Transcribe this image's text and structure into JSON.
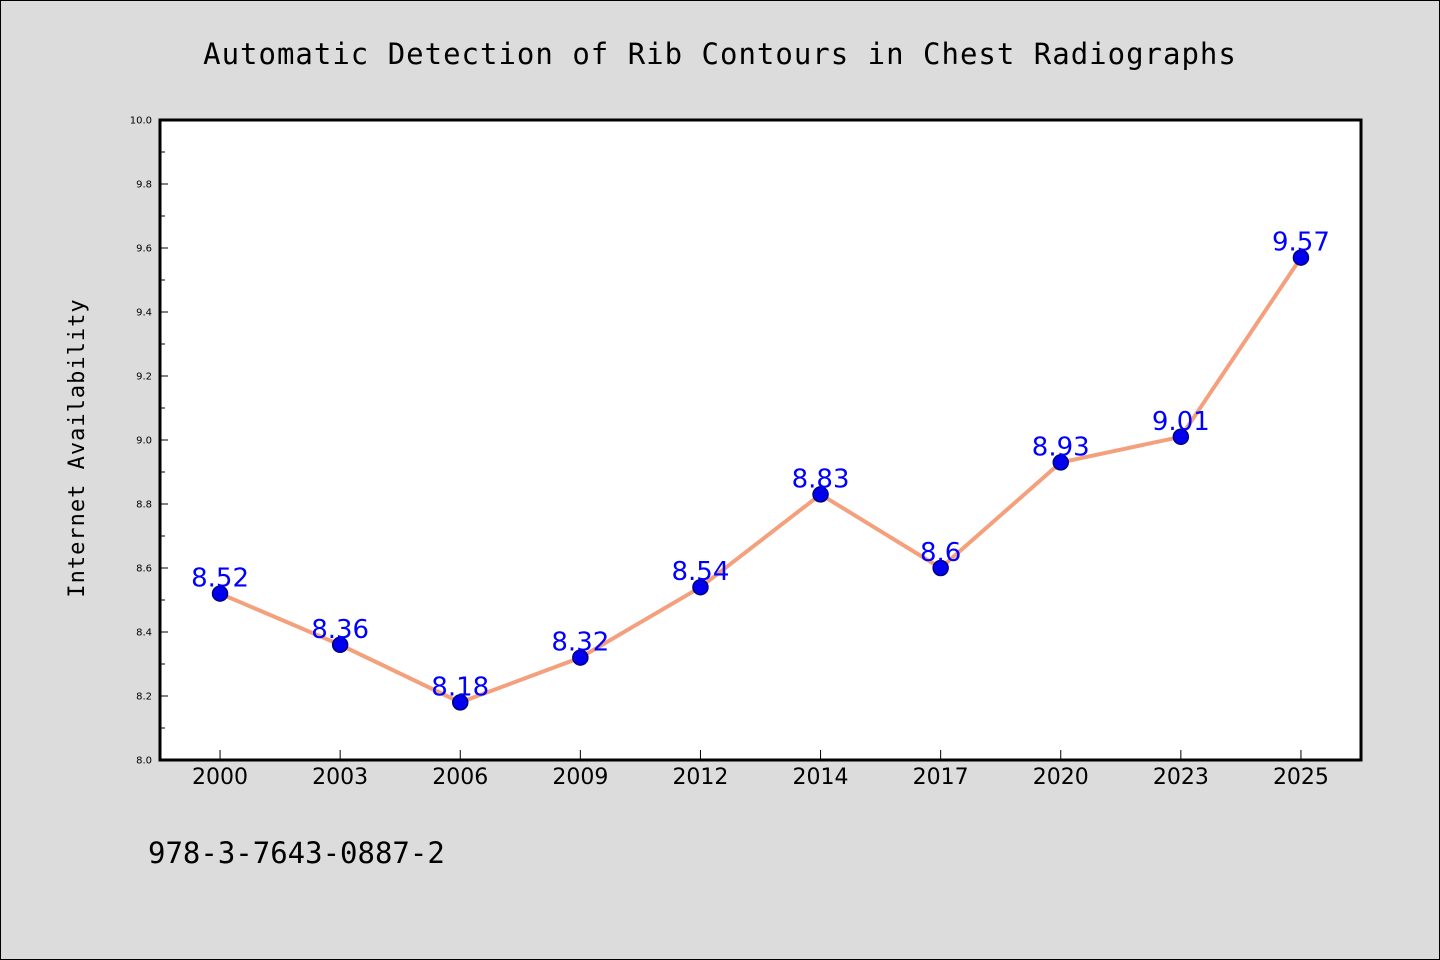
{
  "chart_data": {
    "type": "line",
    "title": "Automatic Detection of Rib Contours in Chest Radiographs",
    "xlabel": "",
    "ylabel": "Internet Availability",
    "x": [
      "2000",
      "2003",
      "2006",
      "2009",
      "2012",
      "2014",
      "2017",
      "2020",
      "2023",
      "2025"
    ],
    "series": [
      {
        "values": [
          8.52,
          8.36,
          8.18,
          8.32,
          8.54,
          8.83,
          8.6,
          8.93,
          9.01,
          9.57
        ],
        "data_labels": [
          "8.52",
          "8.36",
          "8.18",
          "8.32",
          "8.54",
          "8.83",
          "8.6",
          "8.93",
          "9.01",
          "9.57"
        ]
      }
    ],
    "ylim": [
      8.0,
      10.0
    ],
    "yticks": [
      "8.0",
      "8.2",
      "8.4",
      "8.6",
      "8.8",
      "9.0",
      "9.2",
      "9.4",
      "9.6",
      "9.8",
      "10.0"
    ],
    "grid": false,
    "legend": "none"
  },
  "footer": {
    "text": "978-3-7643-0887-2"
  },
  "colors": {
    "background": "#dcdcdc",
    "plot_background": "#ffffff",
    "line": "#f4a07c",
    "marker_fill": "#0000ee",
    "marker_edge": "#000080",
    "data_label": "#0000ff",
    "axis": "#000000"
  }
}
